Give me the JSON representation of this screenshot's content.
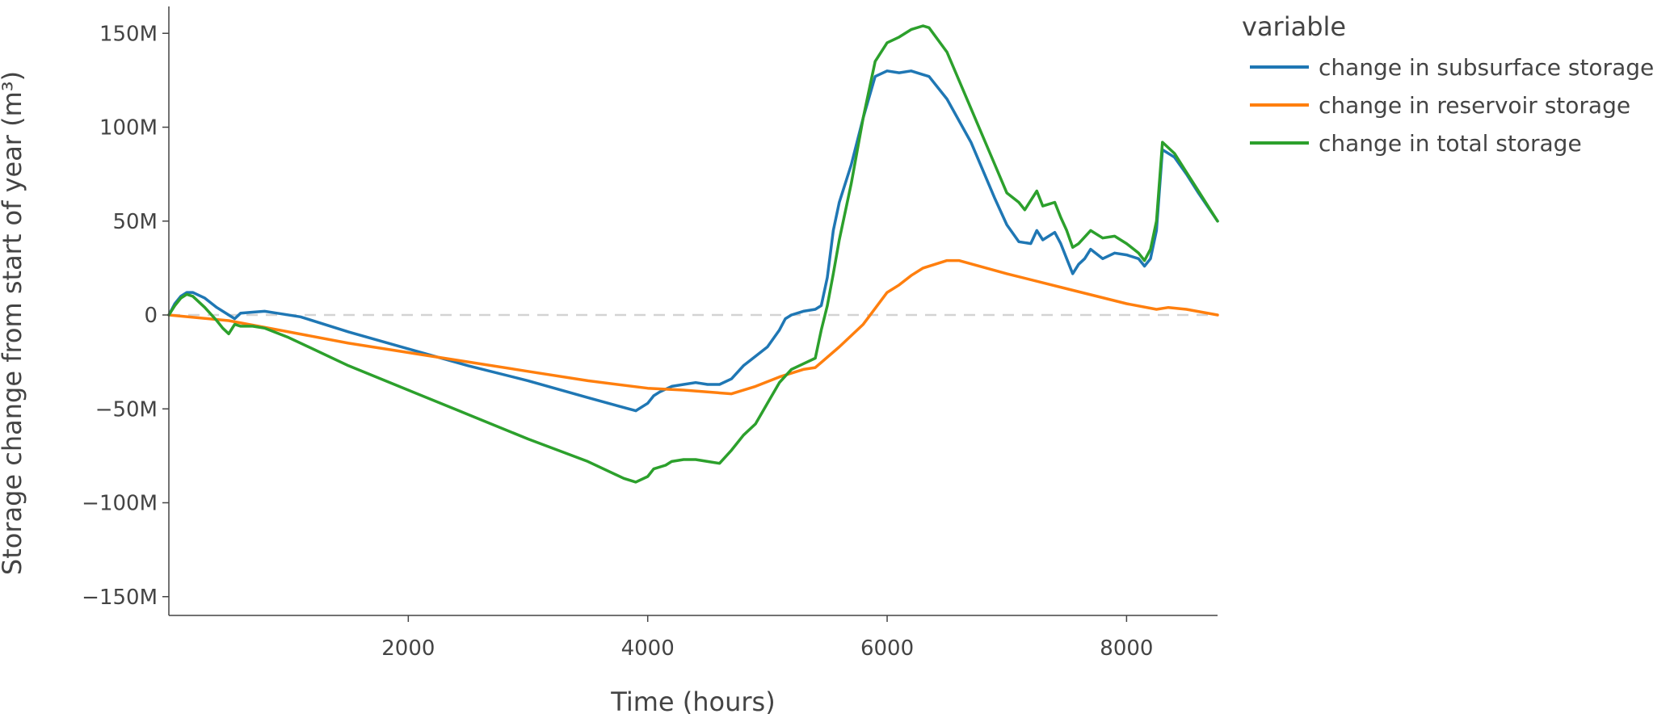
{
  "chart_data": {
    "type": "line",
    "xlabel": "Time (hours)",
    "ylabel": "Storage change from start of year (m³)",
    "xlim": [
      0,
      8760
    ],
    "ylim": [
      -160000000,
      160000000
    ],
    "x_ticks": [
      {
        "value": 2000,
        "label": "2000"
      },
      {
        "value": 4000,
        "label": "4000"
      },
      {
        "value": 6000,
        "label": "6000"
      },
      {
        "value": 8000,
        "label": "8000"
      }
    ],
    "y_ticks": [
      {
        "value": 150000000,
        "label": "150M"
      },
      {
        "value": 100000000,
        "label": "100M"
      },
      {
        "value": 50000000,
        "label": "50M"
      },
      {
        "value": 0,
        "label": "0"
      },
      {
        "value": -50000000,
        "label": "−50M"
      },
      {
        "value": -100000000,
        "label": "−100M"
      },
      {
        "value": -150000000,
        "label": "−150M"
      }
    ],
    "zero_line": {
      "style": "dashed",
      "color": "#d3d3d3"
    },
    "grid": false,
    "legend": {
      "title": "variable",
      "position": "right-top"
    },
    "series": [
      {
        "name": "change in subsurface storage",
        "color": "#1f77b4",
        "points": [
          [
            0,
            0
          ],
          [
            50,
            6000000
          ],
          [
            100,
            10000000
          ],
          [
            150,
            12000000
          ],
          [
            200,
            12000000
          ],
          [
            300,
            9000000
          ],
          [
            400,
            4000000
          ],
          [
            500,
            0
          ],
          [
            550,
            -2000000
          ],
          [
            600,
            1000000
          ],
          [
            700,
            1500000
          ],
          [
            800,
            2000000
          ],
          [
            900,
            1000000
          ],
          [
            1100,
            -1000000
          ],
          [
            1500,
            -9000000
          ],
          [
            2000,
            -18000000
          ],
          [
            2500,
            -27000000
          ],
          [
            3000,
            -35000000
          ],
          [
            3500,
            -44000000
          ],
          [
            3900,
            -51000000
          ],
          [
            4000,
            -47000000
          ],
          [
            4050,
            -43000000
          ],
          [
            4100,
            -41000000
          ],
          [
            4200,
            -38000000
          ],
          [
            4300,
            -37000000
          ],
          [
            4400,
            -36000000
          ],
          [
            4500,
            -37000000
          ],
          [
            4600,
            -37000000
          ],
          [
            4700,
            -34000000
          ],
          [
            4800,
            -27000000
          ],
          [
            4900,
            -22000000
          ],
          [
            5000,
            -17000000
          ],
          [
            5100,
            -8000000
          ],
          [
            5150,
            -2000000
          ],
          [
            5200,
            0
          ],
          [
            5300,
            2000000
          ],
          [
            5400,
            3000000
          ],
          [
            5450,
            5000000
          ],
          [
            5500,
            20000000
          ],
          [
            5550,
            45000000
          ],
          [
            5600,
            60000000
          ],
          [
            5700,
            80000000
          ],
          [
            5800,
            105000000
          ],
          [
            5900,
            127000000
          ],
          [
            6000,
            130000000
          ],
          [
            6100,
            129000000
          ],
          [
            6200,
            130000000
          ],
          [
            6300,
            128000000
          ],
          [
            6350,
            127000000
          ],
          [
            6500,
            115000000
          ],
          [
            6700,
            92000000
          ],
          [
            6900,
            62000000
          ],
          [
            7000,
            48000000
          ],
          [
            7100,
            39000000
          ],
          [
            7200,
            38000000
          ],
          [
            7250,
            45000000
          ],
          [
            7300,
            40000000
          ],
          [
            7400,
            44000000
          ],
          [
            7450,
            38000000
          ],
          [
            7500,
            30000000
          ],
          [
            7550,
            22000000
          ],
          [
            7600,
            27000000
          ],
          [
            7650,
            30000000
          ],
          [
            7700,
            35000000
          ],
          [
            7800,
            30000000
          ],
          [
            7900,
            33000000
          ],
          [
            8000,
            32000000
          ],
          [
            8100,
            30000000
          ],
          [
            8150,
            26000000
          ],
          [
            8200,
            30000000
          ],
          [
            8250,
            45000000
          ],
          [
            8300,
            88000000
          ],
          [
            8400,
            84000000
          ],
          [
            8500,
            75000000
          ],
          [
            8600,
            65000000
          ],
          [
            8760,
            50000000
          ]
        ]
      },
      {
        "name": "change in reservoir storage",
        "color": "#ff7f0e",
        "points": [
          [
            0,
            0
          ],
          [
            500,
            -3000000
          ],
          [
            1000,
            -9000000
          ],
          [
            1500,
            -15000000
          ],
          [
            2000,
            -20000000
          ],
          [
            2500,
            -25000000
          ],
          [
            3000,
            -30000000
          ],
          [
            3500,
            -35000000
          ],
          [
            4000,
            -39000000
          ],
          [
            4300,
            -40000000
          ],
          [
            4700,
            -42000000
          ],
          [
            4900,
            -38000000
          ],
          [
            5100,
            -33000000
          ],
          [
            5300,
            -29000000
          ],
          [
            5400,
            -28000000
          ],
          [
            5600,
            -17000000
          ],
          [
            5800,
            -5000000
          ],
          [
            6000,
            12000000
          ],
          [
            6100,
            16000000
          ],
          [
            6200,
            21000000
          ],
          [
            6300,
            25000000
          ],
          [
            6500,
            29000000
          ],
          [
            6600,
            29000000
          ],
          [
            7000,
            22000000
          ],
          [
            7500,
            14000000
          ],
          [
            8000,
            6000000
          ],
          [
            8250,
            3000000
          ],
          [
            8350,
            4000000
          ],
          [
            8500,
            3000000
          ],
          [
            8760,
            0
          ]
        ]
      },
      {
        "name": "change in total storage",
        "color": "#2ca02c",
        "points": [
          [
            0,
            0
          ],
          [
            50,
            5000000
          ],
          [
            100,
            9000000
          ],
          [
            150,
            11000000
          ],
          [
            200,
            10000000
          ],
          [
            300,
            4000000
          ],
          [
            400,
            -3000000
          ],
          [
            450,
            -7000000
          ],
          [
            500,
            -10000000
          ],
          [
            550,
            -5000000
          ],
          [
            600,
            -6000000
          ],
          [
            700,
            -6000000
          ],
          [
            800,
            -7000000
          ],
          [
            1000,
            -12000000
          ],
          [
            1500,
            -27000000
          ],
          [
            2000,
            -40000000
          ],
          [
            2500,
            -53000000
          ],
          [
            3000,
            -66000000
          ],
          [
            3500,
            -78000000
          ],
          [
            3800,
            -87000000
          ],
          [
            3900,
            -89000000
          ],
          [
            4000,
            -86000000
          ],
          [
            4050,
            -82000000
          ],
          [
            4150,
            -80000000
          ],
          [
            4200,
            -78000000
          ],
          [
            4300,
            -77000000
          ],
          [
            4400,
            -77000000
          ],
          [
            4500,
            -78000000
          ],
          [
            4600,
            -79000000
          ],
          [
            4700,
            -72000000
          ],
          [
            4800,
            -64000000
          ],
          [
            4900,
            -58000000
          ],
          [
            5000,
            -47000000
          ],
          [
            5100,
            -36000000
          ],
          [
            5200,
            -29000000
          ],
          [
            5300,
            -26000000
          ],
          [
            5400,
            -23000000
          ],
          [
            5450,
            -8000000
          ],
          [
            5500,
            5000000
          ],
          [
            5550,
            22000000
          ],
          [
            5600,
            40000000
          ],
          [
            5700,
            70000000
          ],
          [
            5800,
            105000000
          ],
          [
            5900,
            135000000
          ],
          [
            6000,
            145000000
          ],
          [
            6100,
            148000000
          ],
          [
            6200,
            152000000
          ],
          [
            6300,
            154000000
          ],
          [
            6350,
            153000000
          ],
          [
            6500,
            140000000
          ],
          [
            6700,
            110000000
          ],
          [
            6900,
            80000000
          ],
          [
            7000,
            65000000
          ],
          [
            7100,
            60000000
          ],
          [
            7150,
            56000000
          ],
          [
            7200,
            61000000
          ],
          [
            7250,
            66000000
          ],
          [
            7300,
            58000000
          ],
          [
            7400,
            60000000
          ],
          [
            7450,
            52000000
          ],
          [
            7500,
            45000000
          ],
          [
            7550,
            36000000
          ],
          [
            7600,
            38000000
          ],
          [
            7700,
            45000000
          ],
          [
            7800,
            41000000
          ],
          [
            7900,
            42000000
          ],
          [
            8000,
            38000000
          ],
          [
            8100,
            33000000
          ],
          [
            8150,
            29000000
          ],
          [
            8200,
            35000000
          ],
          [
            8250,
            50000000
          ],
          [
            8300,
            92000000
          ],
          [
            8400,
            86000000
          ],
          [
            8500,
            76000000
          ],
          [
            8600,
            66000000
          ],
          [
            8760,
            50000000
          ]
        ]
      }
    ]
  }
}
